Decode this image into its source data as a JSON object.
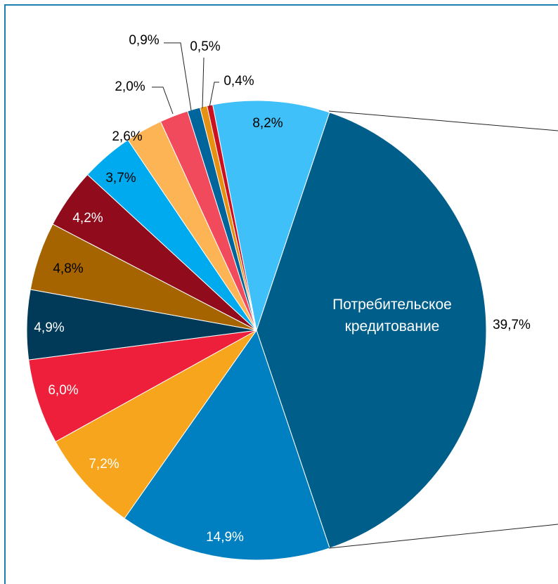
{
  "chart_data": {
    "type": "pie",
    "categories": [
      null,
      "Потребительское кредитование",
      null,
      null,
      null,
      null,
      null,
      null,
      null,
      null,
      null,
      null,
      null,
      null
    ],
    "values": [
      8.2,
      39.7,
      14.9,
      7.2,
      6.0,
      4.9,
      4.8,
      4.2,
      3.7,
      2.6,
      2.0,
      0.9,
      0.5,
      0.4
    ],
    "value_labels": [
      "8,2%",
      "39,7%",
      "14,9%",
      "7,2%",
      "6,0%",
      "4,9%",
      "4,8%",
      "4,2%",
      "3,7%",
      "2,6%",
      "2,0%",
      "0,9%",
      "0,5%",
      "0,4%"
    ],
    "colors": [
      "#40c0f8",
      "#005e8a",
      "#0080c0",
      "#f8a51e",
      "#ee1f3a",
      "#003a58",
      "#a66400",
      "#900c1d",
      "#00aaee",
      "#fdb454",
      "#f04a5c",
      "#00659a",
      "#e89010",
      "#cc1020"
    ]
  }
}
